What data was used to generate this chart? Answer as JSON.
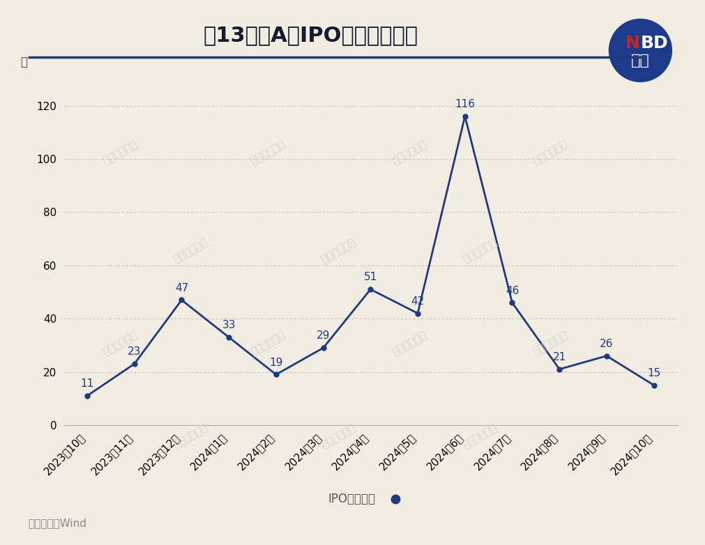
{
  "title": "近13个月A股IPO申报终止数量",
  "ylabel": "家",
  "source": "数据来源｜Wind",
  "legend_label": "IPO终止数量",
  "categories": [
    "2023年10月",
    "2023年11月",
    "2023年12月",
    "2024年1月",
    "2024年2月",
    "2024年3月",
    "2024年4月",
    "2024年5月",
    "2024年6月",
    "2024年7月",
    "2024年8月",
    "2024年9月",
    "2024年10月"
  ],
  "values": [
    11,
    23,
    47,
    33,
    19,
    29,
    51,
    42,
    116,
    46,
    21,
    26,
    15
  ],
  "ylim": [
    0,
    130
  ],
  "yticks": [
    0,
    20,
    40,
    60,
    80,
    100,
    120
  ],
  "line_color": "#1e3a7e",
  "marker_color": "#1e3a7e",
  "bg_color": "#f2ede3",
  "plot_bg_color": "#f2ede3",
  "grid_color": "#d0ccc4",
  "title_fontsize": 22,
  "tick_fontsize": 11,
  "label_fontsize": 12,
  "annotation_fontsize": 11,
  "nbd_circle_color": "#1e3a8a",
  "watermark_text": "每日经济新闻",
  "watermark_color": "#d8d0c0",
  "source_color": "#888888",
  "divider_color": "#1e3a7e"
}
